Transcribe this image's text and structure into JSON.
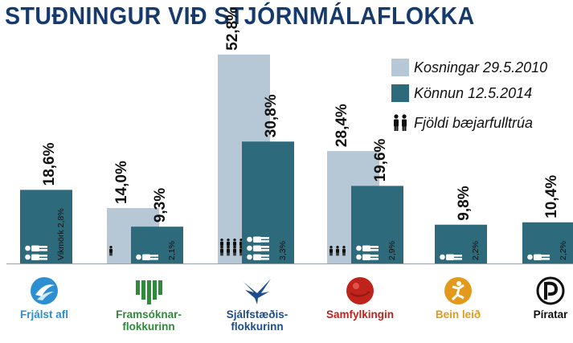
{
  "title": "STUÐNINGUR VIÐ STJÓRNMÁLAFLOKKA",
  "legend": {
    "series_2010": "Kosningar 29.5.2010",
    "series_2014": "Könnun 12.5.2014",
    "councillors": "Fjöldi bæjarfulltrúa"
  },
  "colors": {
    "light": "#b6c7d6",
    "dark": "#2d6a7b",
    "title": "#153a6b"
  },
  "chart_data": {
    "type": "bar",
    "categories": [
      "Frjálst afl",
      "Framsóknar-flokkurinn",
      "Sjálfstæðis-flokkurinn",
      "Samfylkingin",
      "Bein leið",
      "Píratar"
    ],
    "ylim": [
      0,
      55
    ],
    "series": [
      {
        "name": "Kosningar 29.5.2010",
        "values": [
          null,
          14.0,
          52.8,
          28.4,
          null,
          null
        ],
        "labels": [
          "",
          "14,0%",
          "52,8%",
          "28,4%",
          "",
          ""
        ]
      },
      {
        "name": "Könnun 12.5.2014",
        "values": [
          18.6,
          9.3,
          30.8,
          19.6,
          9.8,
          10.4
        ],
        "labels": [
          "18,6%",
          "9,3%",
          "30,8%",
          "19,6%",
          "9,8%",
          "10,4%"
        ]
      }
    ],
    "councillors_2010": [
      0,
      1,
      7,
      3,
      0,
      0
    ],
    "councillors_2014": [
      2,
      1,
      3,
      2,
      1,
      1
    ],
    "inner_labels": [
      "Vikmörk 2,8%",
      "2,1%",
      "3,3%",
      "2,9%",
      "2,2%",
      "2,2%"
    ]
  },
  "parties": [
    {
      "label": "Frjálst afl",
      "color": "#2b8fd1"
    },
    {
      "label": "Framsóknar-\nflokkurinn",
      "color": "#2e8b3a"
    },
    {
      "label": "Sjálfstæðis-\nflokkurinn",
      "color": "#1f4d8c"
    },
    {
      "label": "Samfylkingin",
      "color": "#c0231c"
    },
    {
      "label": "Bein leið",
      "color": "#e39a1c"
    },
    {
      "label": "Píratar",
      "color": "#111111"
    }
  ]
}
